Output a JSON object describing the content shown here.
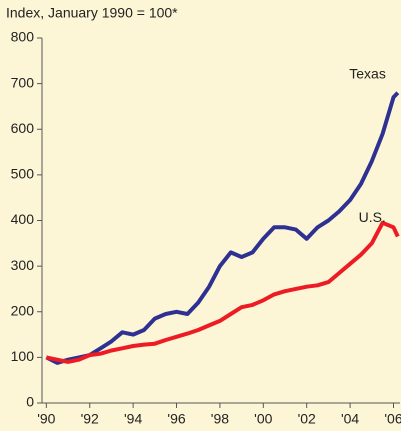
{
  "chart_data": {
    "type": "line",
    "axis_label": "Index, January 1990 = 100*",
    "x": [
      1990,
      1990.5,
      1991,
      1991.5,
      1992,
      1992.5,
      1993,
      1993.5,
      1994,
      1994.5,
      1995,
      1995.5,
      1996,
      1996.5,
      1997,
      1997.5,
      1998,
      1998.5,
      1999,
      1999.5,
      2000,
      2000.5,
      2001,
      2001.5,
      2002,
      2002.5,
      2003,
      2003.5,
      2004,
      2004.5,
      2005,
      2005.5,
      2006,
      2006.2
    ],
    "series": [
      {
        "name": "Texas",
        "color": "#2e3192",
        "values": [
          100,
          88,
          95,
          100,
          105,
          120,
          135,
          155,
          150,
          160,
          185,
          195,
          200,
          195,
          220,
          255,
          300,
          330,
          320,
          330,
          360,
          385,
          385,
          380,
          360,
          385,
          400,
          420,
          445,
          480,
          530,
          590,
          670,
          680
        ]
      },
      {
        "name": "U.S.",
        "color": "#ed1c24",
        "values": [
          100,
          95,
          90,
          95,
          105,
          108,
          115,
          120,
          125,
          128,
          130,
          138,
          145,
          152,
          160,
          170,
          180,
          195,
          210,
          215,
          225,
          238,
          245,
          250,
          255,
          258,
          265,
          285,
          305,
          325,
          350,
          395,
          385,
          365
        ]
      }
    ],
    "xlim": [
      1989.8,
      2006.3
    ],
    "xticks": [
      {
        "value": 1990,
        "label": "'90"
      },
      {
        "value": 1992,
        "label": "'92"
      },
      {
        "value": 1994,
        "label": "'94"
      },
      {
        "value": 1996,
        "label": "'96"
      },
      {
        "value": 1998,
        "label": "'98"
      },
      {
        "value": 2000,
        "label": "'00"
      },
      {
        "value": 2002,
        "label": "'02"
      },
      {
        "value": 2004,
        "label": "'04"
      },
      {
        "value": 2006,
        "label": "'06"
      }
    ],
    "ylim": [
      0,
      800
    ],
    "yticks": [
      0,
      100,
      200,
      300,
      400,
      500,
      600,
      700,
      800
    ],
    "grid": false
  }
}
